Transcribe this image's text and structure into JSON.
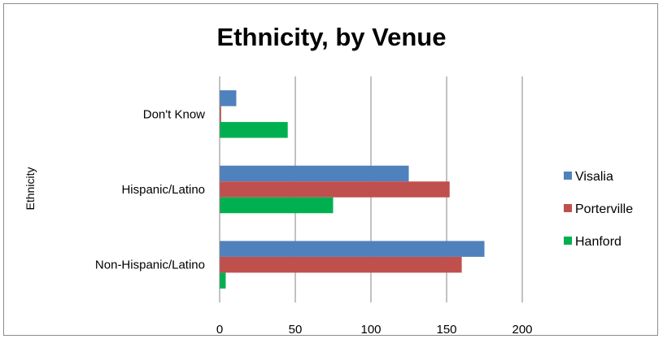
{
  "chart_data": {
    "type": "bar",
    "orientation": "horizontal",
    "title": "Ethnicity, by Venue",
    "xlabel": "",
    "ylabel": "Ethnicity",
    "categories": [
      "Don't Know",
      "Hispanic/Latino",
      "Non-Hispanic/Latino"
    ],
    "series": [
      {
        "name": "Visalia",
        "color": "#4F81BD",
        "values": [
          11,
          125,
          175
        ]
      },
      {
        "name": "Porterville",
        "color": "#C0504D",
        "values": [
          1,
          152,
          160
        ]
      },
      {
        "name": "Hanford",
        "color": "#00B050",
        "values": [
          45,
          75,
          4
        ]
      }
    ],
    "xlim": [
      0,
      200
    ],
    "xticks": [
      0,
      50,
      100,
      150,
      200
    ],
    "grid": true,
    "legend": "right"
  }
}
